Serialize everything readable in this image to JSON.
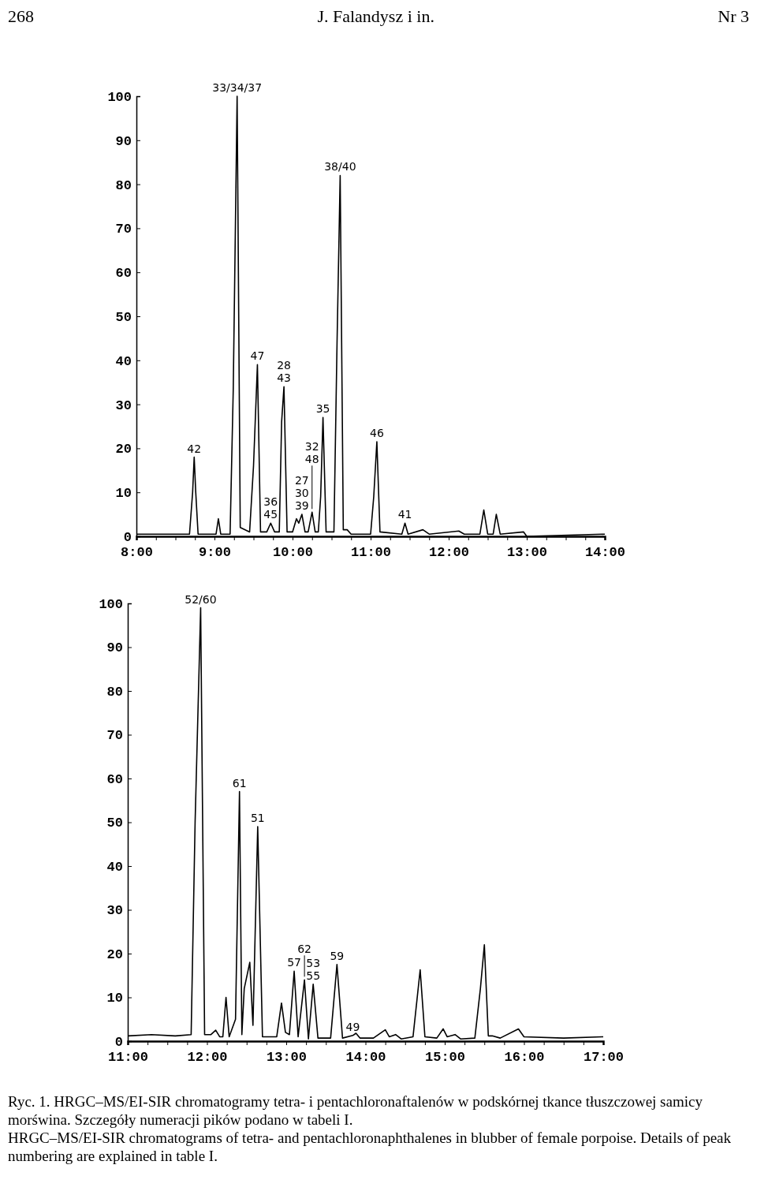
{
  "chart_data": [
    {
      "type": "line",
      "xlim": [
        8,
        14
      ],
      "ylim": [
        0,
        100
      ],
      "xticks": [
        {
          "value": 8,
          "label": "8:00"
        },
        {
          "value": 8.25,
          "label": null
        },
        {
          "value": 8.5,
          "label": null
        },
        {
          "value": 8.75,
          "label": null
        },
        {
          "value": 9,
          "label": "9:00"
        },
        {
          "value": 9.25,
          "label": null
        },
        {
          "value": 9.5,
          "label": null
        },
        {
          "value": 9.75,
          "label": null
        },
        {
          "value": 10,
          "label": "10:00"
        },
        {
          "value": 10.25,
          "label": null
        },
        {
          "value": 10.5,
          "label": null
        },
        {
          "value": 10.75,
          "label": null
        },
        {
          "value": 11,
          "label": "11:00"
        },
        {
          "value": 11.25,
          "label": null
        },
        {
          "value": 11.5,
          "label": null
        },
        {
          "value": 11.75,
          "label": null
        },
        {
          "value": 12,
          "label": "12:00"
        },
        {
          "value": 12.25,
          "label": null
        },
        {
          "value": 12.5,
          "label": null
        },
        {
          "value": 12.75,
          "label": null
        },
        {
          "value": 13,
          "label": "13:00"
        },
        {
          "value": 13.25,
          "label": null
        },
        {
          "value": 13.5,
          "label": null
        },
        {
          "value": 13.75,
          "label": null
        },
        {
          "value": 14,
          "label": "14:00"
        }
      ],
      "yticks": [
        0,
        10,
        20,
        30,
        40,
        50,
        60,
        70,
        80,
        90,
        100
      ],
      "x": [
        8.0,
        8.68,
        8.72,
        8.74,
        8.76,
        8.79,
        9.02,
        9.05,
        9.08,
        9.2,
        9.24,
        9.29,
        9.33,
        9.45,
        9.5,
        9.55,
        9.59,
        9.67,
        9.72,
        9.77,
        9.83,
        9.86,
        9.89,
        9.93,
        10.0,
        10.05,
        10.08,
        10.12,
        10.16,
        10.2,
        10.25,
        10.29,
        10.33,
        10.36,
        10.39,
        10.43,
        10.53,
        10.57,
        10.61,
        10.65,
        10.7,
        10.75,
        11.0,
        11.04,
        11.08,
        11.12,
        11.4,
        11.44,
        11.48,
        11.67,
        11.75,
        12.13,
        12.2,
        12.4,
        12.45,
        12.5,
        12.57,
        12.61,
        12.66,
        12.96,
        13.0,
        14.0
      ],
      "series": [
        {
          "color": "#000000",
          "values": [
            0.5,
            0.5,
            10,
            18,
            10,
            0.5,
            0.5,
            4,
            0.5,
            0.5,
            33,
            100,
            2,
            1,
            16,
            39,
            1,
            1,
            3,
            1,
            1,
            26,
            34,
            1,
            1,
            4,
            3,
            5,
            1,
            1,
            5.5,
            1,
            1,
            9,
            27,
            1,
            1,
            44,
            82,
            1.5,
            1.5,
            0.5,
            0.5,
            9,
            21.5,
            1,
            0.5,
            3,
            0.5,
            1.5,
            0.5,
            1.2,
            0.5,
            0.5,
            6,
            0.5,
            0.5,
            5,
            0.5,
            1,
            0,
            0.5
          ]
        }
      ],
      "annotations": [
        "268",
        "J. Falandysz i in.",
        "Nr 3",
        {
          "text": "42",
          "x": 8.74,
          "y": 18
        },
        {
          "text": "33/34/37",
          "x": 9.29,
          "y": 100
        },
        {
          "text": "47",
          "x": 9.55,
          "y": 39
        },
        {
          "text": "36\n45",
          "x": 9.72,
          "y": 3
        },
        {
          "text": "28\n43",
          "x": 9.89,
          "y": 34
        },
        {
          "text": "27\n30\n39",
          "x": 10.12,
          "y": 5
        },
        {
          "text": "32\n48",
          "x": 10.25,
          "y": 5.5
        },
        {
          "text": "35",
          "x": 10.39,
          "y": 27
        },
        {
          "text": "38/40",
          "x": 10.61,
          "y": 82
        },
        {
          "text": "46",
          "x": 11.08,
          "y": 21.5
        },
        {
          "text": "41",
          "x": 11.44,
          "y": 3
        }
      ]
    },
    {
      "type": "line",
      "xlim": [
        11,
        17
      ],
      "ylim": [
        0,
        100
      ],
      "xticks": [
        {
          "value": 11,
          "label": "11:00"
        },
        {
          "value": 11.25,
          "label": null
        },
        {
          "value": 11.5,
          "label": null
        },
        {
          "value": 11.75,
          "label": null
        },
        {
          "value": 12,
          "label": "12:00"
        },
        {
          "value": 12.25,
          "label": null
        },
        {
          "value": 12.5,
          "label": null
        },
        {
          "value": 12.75,
          "label": null
        },
        {
          "value": 13,
          "label": "13:00"
        },
        {
          "value": 13.25,
          "label": null
        },
        {
          "value": 13.5,
          "label": null
        },
        {
          "value": 13.75,
          "label": null
        },
        {
          "value": 14,
          "label": "14:00"
        },
        {
          "value": 14.25,
          "label": null
        },
        {
          "value": 14.5,
          "label": null
        },
        {
          "value": 14.75,
          "label": null
        },
        {
          "value": 15,
          "label": "15:00"
        },
        {
          "value": 15.25,
          "label": null
        },
        {
          "value": 15.5,
          "label": null
        },
        {
          "value": 15.75,
          "label": null
        },
        {
          "value": 16,
          "label": "16:00"
        },
        {
          "value": 16.25,
          "label": null
        },
        {
          "value": 16.5,
          "label": null
        },
        {
          "value": 16.75,
          "label": null
        },
        {
          "value": 17,
          "label": "17:00"
        }
      ],
      "yticks": [
        0,
        10,
        20,
        30,
        40,
        50,
        60,
        70,
        80,
        90,
        100
      ],
      "x": [
        11.0,
        11.3,
        11.6,
        11.8,
        11.85,
        11.92,
        11.97,
        12.05,
        12.11,
        12.16,
        12.2,
        12.24,
        12.28,
        12.36,
        12.41,
        12.44,
        12.47,
        12.54,
        12.58,
        12.64,
        12.7,
        12.88,
        12.94,
        12.99,
        13.04,
        13.1,
        13.15,
        13.23,
        13.28,
        13.34,
        13.4,
        13.56,
        13.64,
        13.71,
        13.84,
        13.88,
        13.93,
        14.1,
        14.25,
        14.3,
        14.38,
        14.45,
        14.6,
        14.69,
        14.75,
        14.9,
        14.98,
        15.03,
        15.13,
        15.2,
        15.38,
        15.45,
        15.5,
        15.55,
        15.6,
        15.7,
        15.93,
        16.0,
        16.5,
        17.0
      ],
      "series": [
        {
          "color": "#000000",
          "values": [
            1.2,
            1.5,
            1.2,
            1.5,
            50,
            99,
            1.5,
            1.5,
            2.5,
            1,
            1,
            10,
            1,
            5,
            57,
            1.5,
            12,
            18,
            3.6,
            49,
            1,
            1,
            8.7,
            2,
            1.5,
            16,
            1,
            14,
            0.5,
            13,
            0.7,
            0.7,
            17.5,
            0.7,
            1.3,
            1.8,
            0.7,
            0.7,
            2.6,
            1,
            1.5,
            0.5,
            1,
            16.3,
            1,
            0.7,
            2.8,
            1,
            1.5,
            0.5,
            0.7,
            12,
            22,
            1.2,
            1.2,
            0.7,
            2.8,
            1,
            0.7,
            1
          ]
        }
      ],
      "annotations": [
        {
          "text": "52/60",
          "x": 11.92,
          "y": 99
        },
        {
          "text": "61",
          "x": 12.41,
          "y": 57
        },
        {
          "text": "51",
          "x": 12.64,
          "y": 49
        },
        {
          "text": "57",
          "x": 13.1,
          "y": 16
        },
        {
          "text": "62",
          "x": 13.23,
          "y": 14
        },
        {
          "text": "53\n55",
          "x": 13.34,
          "y": 13
        },
        {
          "text": "59",
          "x": 13.64,
          "y": 17.5
        },
        {
          "text": "49",
          "x": 13.84,
          "y": 1.3
        },
        "Ryc. 1. HRGC–MS/EI-SIR chromatogramy tetra- i pentachloronaftalenów w podskórnej tkance tłuszczowej samicy morświna. Szczegóły numeracji pików podano w tabeli I.",
        "HRGC–MS/EI-SIR chromatograms of tetra- and pentachloronaphthalenes in blubber of female porpoise. Details of peak numbering are explained in table I."
      ]
    }
  ]
}
